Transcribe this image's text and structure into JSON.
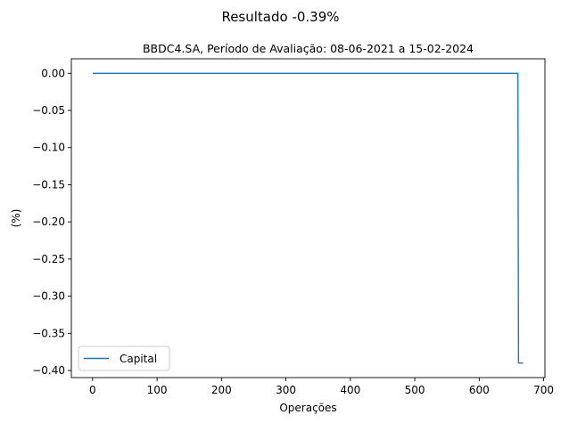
{
  "chart_data": {
    "type": "line",
    "suptitle": "Resultado -0.39%",
    "title": "BBDC4.SA, Período de Avaliação: 08-06-2021 a 15-02-2024",
    "xlabel": "Operações",
    "ylabel": "(%)",
    "xlim": [
      -33,
      702
    ],
    "ylim": [
      -0.4095,
      0.0195
    ],
    "xticks": [
      0,
      100,
      200,
      300,
      400,
      500,
      600,
      700
    ],
    "yticks": [
      0.0,
      -0.05,
      -0.1,
      -0.15,
      -0.2,
      -0.25,
      -0.3,
      -0.35,
      -0.4
    ],
    "xtick_labels": [
      "0",
      "100",
      "200",
      "300",
      "400",
      "500",
      "600",
      "700"
    ],
    "ytick_labels": [
      "0.00",
      "−0.05",
      "−0.10",
      "−0.15",
      "−0.20",
      "−0.25",
      "−0.30",
      "−0.35",
      "−0.40"
    ],
    "grid": false,
    "legend_position": "lower-left",
    "series": [
      {
        "name": "Capital",
        "color": "#1f77b4",
        "x": [
          0,
          100,
          200,
          300,
          400,
          500,
          600,
          660,
          661,
          668
        ],
        "y": [
          0.0,
          0.0,
          0.0,
          0.0,
          0.0,
          0.0,
          0.0,
          0.0,
          -0.39,
          -0.39
        ]
      }
    ]
  }
}
